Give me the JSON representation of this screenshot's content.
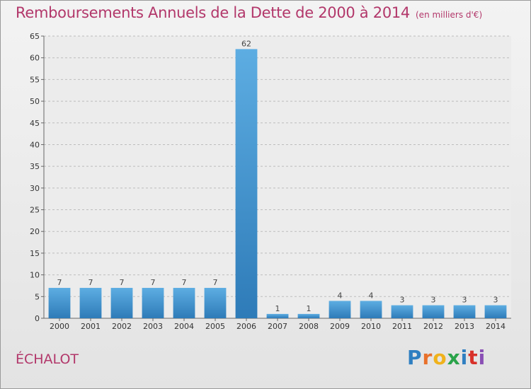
{
  "chart_data": {
    "type": "bar",
    "title": "Remboursements Annuels de la Dette de 2000 à 2014",
    "subtitle": "(en milliers d'€)",
    "categories": [
      "2000",
      "2001",
      "2002",
      "2003",
      "2004",
      "2005",
      "2006",
      "2007",
      "2008",
      "2009",
      "2010",
      "2011",
      "2012",
      "2013",
      "2014"
    ],
    "values": [
      7,
      7,
      7,
      7,
      7,
      7,
      62,
      1,
      1,
      4,
      4,
      3,
      3,
      3,
      3
    ],
    "ylim": [
      0,
      65
    ],
    "yticks": [
      0,
      5,
      10,
      15,
      20,
      25,
      30,
      35,
      40,
      45,
      50,
      55,
      60,
      65
    ],
    "grid": true,
    "colors": {
      "bar_top": "#5dade2",
      "bar_bottom": "#2e7bb8",
      "grid": "#bdbdbd",
      "title": "#b2376a"
    }
  },
  "footer": {
    "commune": "ÉCHALOT"
  },
  "logo": {
    "p": "P",
    "r": "r",
    "o": "o",
    "x": "x",
    "i1": "i",
    "t": "t",
    "i2": "i"
  }
}
